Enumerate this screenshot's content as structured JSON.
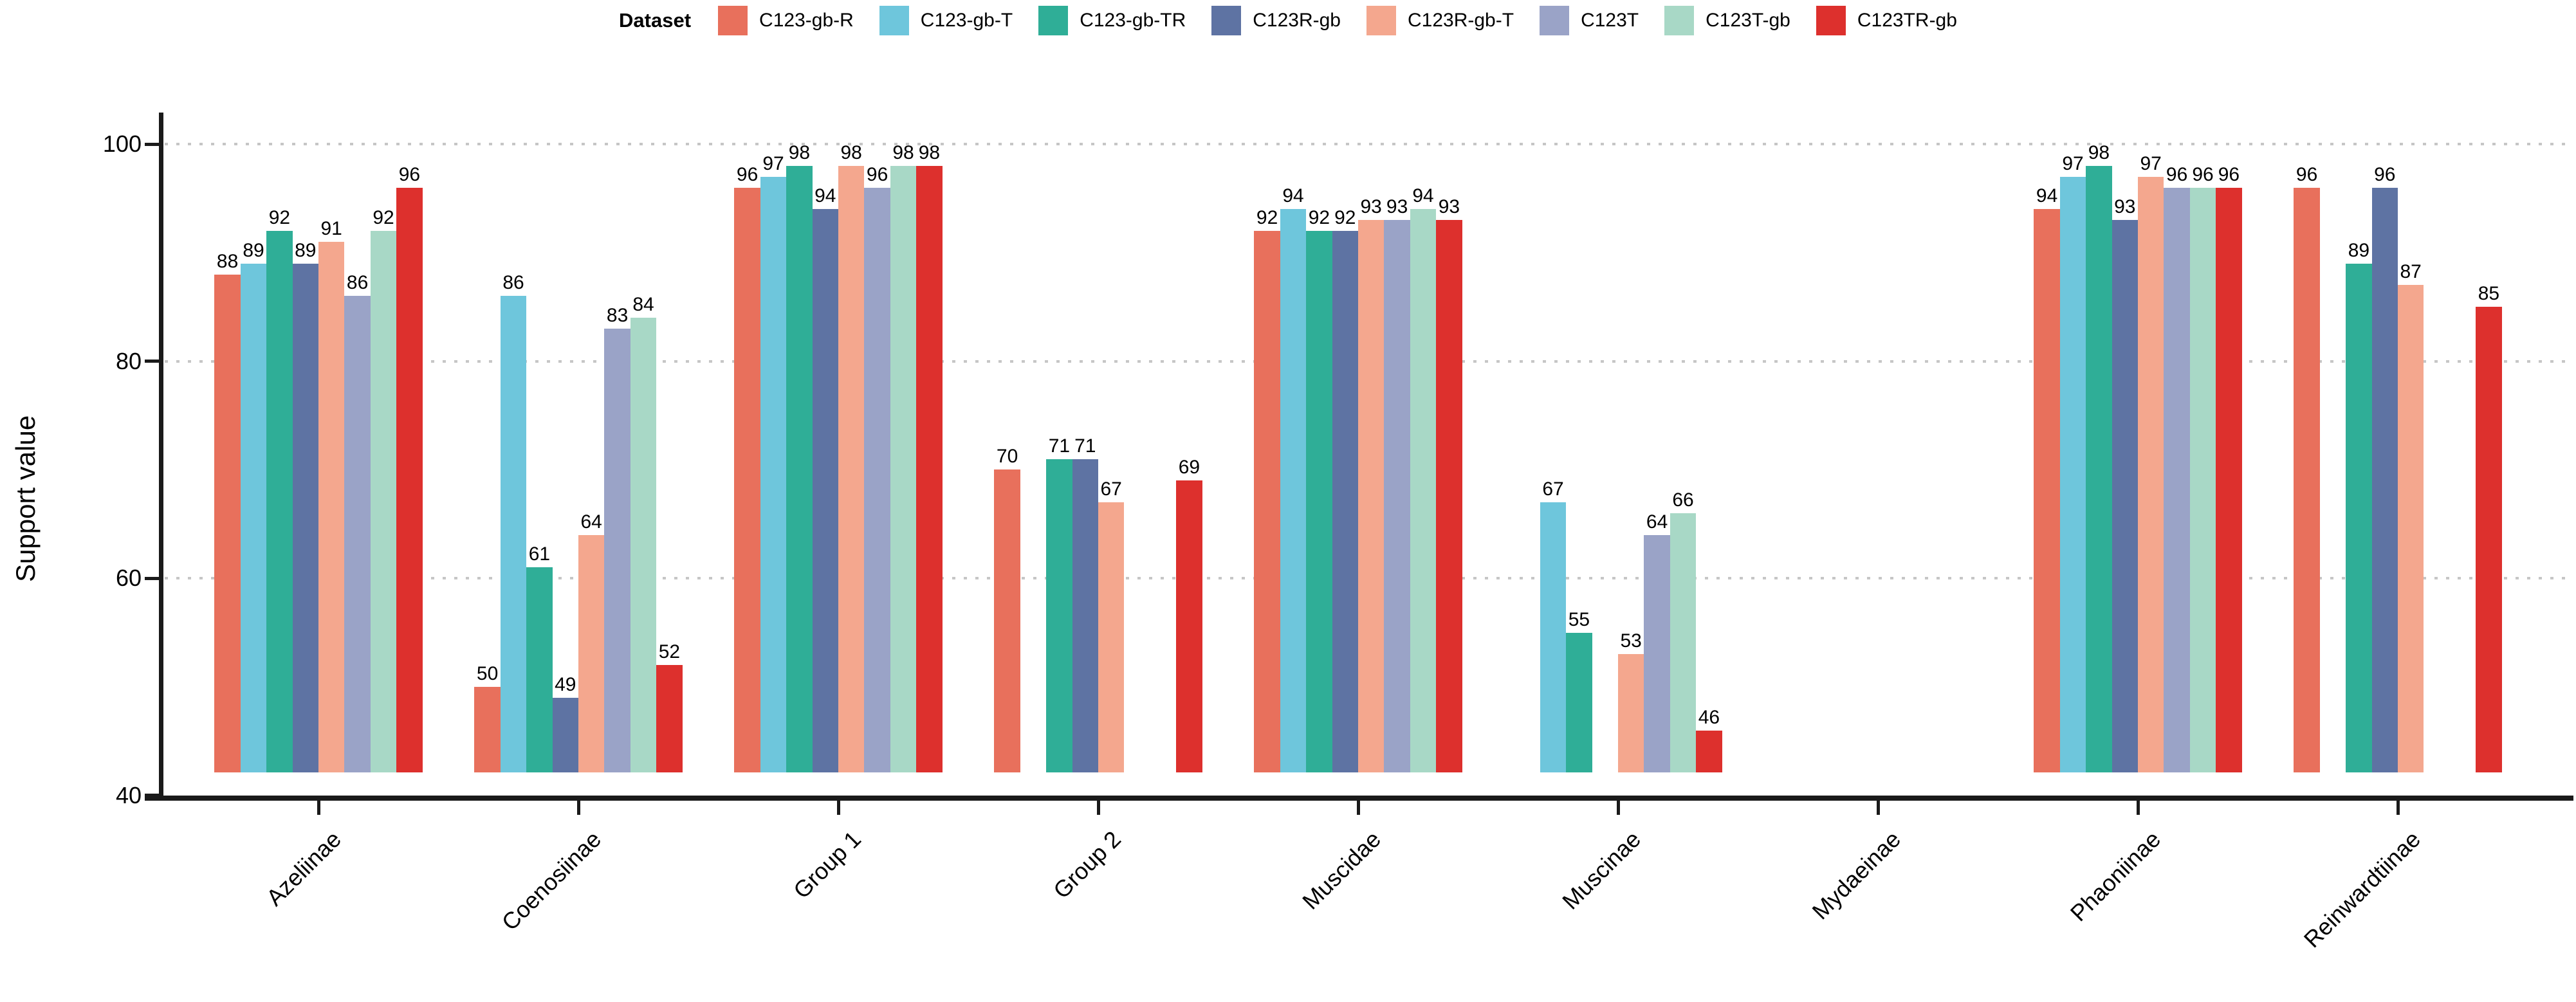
{
  "chart_data": {
    "type": "bar",
    "title": "",
    "xlabel": "",
    "ylabel": "Support value",
    "ylim": [
      40,
      100
    ],
    "y_ticks": [
      40,
      60,
      80,
      100
    ],
    "y_gridlines": [
      60,
      80,
      100
    ],
    "grid_style": "dotted-horizontal",
    "legend_position": "top",
    "legend_title": "Dataset",
    "bar_value_labels": true,
    "categories": [
      "Azeliinae",
      "Coenosiinae",
      "Group 1",
      "Group 2",
      "Muscidae",
      "Muscinae",
      "Mydaeinae",
      "Phaoniinae",
      "Reinwardtiinae"
    ],
    "series": [
      {
        "name": "C123-gb-R",
        "color": "#e8705c",
        "values": [
          88,
          50,
          96,
          70,
          92,
          null,
          null,
          94,
          96
        ]
      },
      {
        "name": "C123-gb-T",
        "color": "#6ec6dc",
        "values": [
          89,
          86,
          97,
          null,
          94,
          67,
          null,
          97,
          null
        ]
      },
      {
        "name": "C123-gb-TR",
        "color": "#2fae97",
        "values": [
          92,
          61,
          98,
          71,
          92,
          55,
          null,
          98,
          89
        ]
      },
      {
        "name": "C123R-gb",
        "color": "#5e73a3",
        "values": [
          89,
          49,
          94,
          71,
          92,
          null,
          null,
          93,
          96
        ]
      },
      {
        "name": "C123R-gb-T",
        "color": "#f4a78e",
        "values": [
          91,
          64,
          98,
          67,
          93,
          53,
          null,
          97,
          87
        ]
      },
      {
        "name": "C123T",
        "color": "#9aa3c7",
        "values": [
          86,
          83,
          96,
          null,
          93,
          64,
          null,
          96,
          null
        ]
      },
      {
        "name": "C123T-gb",
        "color": "#a8d8c6",
        "values": [
          92,
          84,
          98,
          null,
          94,
          66,
          null,
          96,
          null
        ]
      },
      {
        "name": "C123TR-gb",
        "color": "#dd302d",
        "values": [
          96,
          52,
          98,
          69,
          93,
          46,
          null,
          96,
          85
        ]
      }
    ]
  }
}
